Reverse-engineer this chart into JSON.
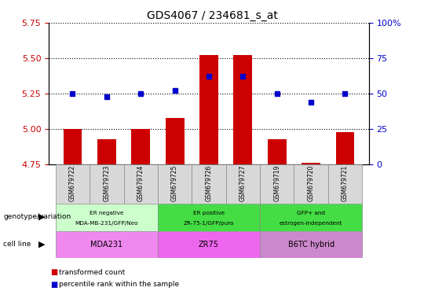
{
  "title": "GDS4067 / 234681_s_at",
  "samples": [
    "GSM679722",
    "GSM679723",
    "GSM679724",
    "GSM679725",
    "GSM679726",
    "GSM679727",
    "GSM679719",
    "GSM679720",
    "GSM679721"
  ],
  "bar_values": [
    5.0,
    4.93,
    5.0,
    5.08,
    5.52,
    5.52,
    4.93,
    4.76,
    4.98
  ],
  "dot_values": [
    50,
    48,
    50,
    52,
    62,
    62,
    50,
    44,
    50
  ],
  "ylim_left": [
    4.75,
    5.75
  ],
  "ylim_right": [
    0,
    100
  ],
  "yticks_left": [
    4.75,
    5.0,
    5.25,
    5.5,
    5.75
  ],
  "yticks_right": [
    0,
    25,
    50,
    75,
    100
  ],
  "bar_color": "#cc0000",
  "dot_color": "#0000cc",
  "bar_base": 4.75,
  "group_defs": [
    {
      "start": 0,
      "end": 3,
      "color": "#ccffcc",
      "line1": "ER negative",
      "line2": "MDA-MB-231/GFP/Neo"
    },
    {
      "start": 3,
      "end": 6,
      "color": "#44dd44",
      "line1": "ER positive",
      "line2": "ZR-75-1/GFP/puro"
    },
    {
      "start": 6,
      "end": 9,
      "color": "#44dd44",
      "line1": "GFP+ and",
      "line2": "estrogen-independent"
    }
  ],
  "cell_defs": [
    {
      "start": 0,
      "end": 3,
      "color": "#ee88ee",
      "label": "MDA231"
    },
    {
      "start": 3,
      "end": 6,
      "color": "#ee66ee",
      "label": "ZR75"
    },
    {
      "start": 6,
      "end": 9,
      "color": "#cc88cc",
      "label": "B6TC hybrid"
    }
  ],
  "genotype_label": "genotype/variation",
  "cellline_label": "cell line",
  "legend_items": [
    "transformed count",
    "percentile rank within the sample"
  ],
  "legend_colors": [
    "#cc0000",
    "#0000cc"
  ],
  "bg_color": "#ffffff",
  "tick_color_left": "#cc0000",
  "tick_color_right": "#0000cc"
}
